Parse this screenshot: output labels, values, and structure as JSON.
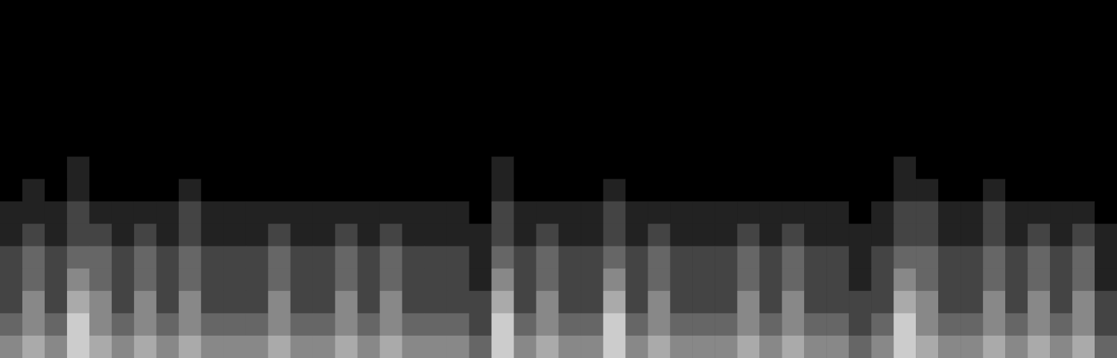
{
  "chart_data": {
    "type": "heatmap",
    "color": "#ffffff",
    "tick_labels": false,
    "cells": [
      [
        0,
        0,
        0,
        0,
        0,
        0,
        0,
        0,
        0,
        0,
        0,
        0,
        0,
        0,
        0,
        0,
        0,
        0,
        0,
        0,
        0,
        0,
        0,
        0,
        0,
        0,
        0,
        0,
        0,
        0,
        0,
        0,
        0,
        0,
        0,
        0,
        0,
        0,
        0,
        0,
        0,
        0,
        0,
        0,
        0,
        0,
        0,
        0,
        0,
        0
      ],
      [
        0,
        0,
        0,
        0,
        0,
        0,
        0,
        0,
        0,
        0,
        0,
        0,
        0,
        0,
        0,
        0,
        0,
        0,
        0,
        0,
        0,
        0,
        0,
        0,
        0,
        0,
        0,
        0,
        0,
        0,
        0,
        0,
        0,
        0,
        0,
        0,
        0,
        0,
        0,
        0,
        0,
        0,
        0,
        0,
        0,
        0,
        0,
        0,
        0,
        0
      ],
      [
        0,
        0,
        0,
        0,
        0,
        0,
        0,
        0,
        0,
        0,
        0,
        0,
        0,
        0,
        0,
        0,
        0,
        0,
        0,
        0,
        0,
        0,
        0,
        0,
        0,
        0,
        0,
        0,
        0,
        0,
        0,
        0,
        0,
        0,
        0,
        0,
        0,
        0,
        0,
        0,
        0,
        0,
        0,
        0,
        0,
        0,
        0,
        0,
        0,
        0
      ],
      [
        0,
        0,
        0,
        0,
        0,
        0,
        0,
        0,
        0,
        0,
        0,
        0,
        0,
        0,
        0,
        0,
        0,
        0,
        0,
        0,
        0,
        0,
        0,
        0,
        0,
        0,
        0,
        0,
        0,
        0,
        0,
        0,
        0,
        0,
        0,
        0,
        0,
        0,
        0,
        0,
        0,
        0,
        0,
        0,
        0,
        0,
        0,
        0,
        0,
        0
      ],
      [
        0,
        0,
        0,
        0,
        0,
        0,
        0,
        0,
        0,
        0,
        0,
        0,
        0,
        0,
        0,
        0,
        0,
        0,
        0,
        0,
        0,
        0,
        0,
        0,
        0,
        0,
        0,
        0,
        0,
        0,
        0,
        0,
        0,
        0,
        0,
        0,
        0,
        0,
        0,
        0,
        0,
        0,
        0,
        0,
        0,
        0,
        0,
        0,
        0,
        0
      ],
      [
        0,
        0,
        0,
        0,
        0,
        0,
        0,
        0,
        0,
        0,
        0,
        0,
        0,
        0,
        0,
        0,
        0,
        0,
        0,
        0,
        0,
        0,
        0,
        0,
        0,
        0,
        0,
        0,
        0,
        0,
        0,
        0,
        0,
        0,
        0,
        0,
        0,
        0,
        0,
        0,
        0,
        0,
        0,
        0,
        0,
        0,
        0,
        0,
        0,
        0
      ],
      [
        0,
        0,
        0,
        0,
        0,
        0,
        0,
        0,
        0,
        0,
        0,
        0,
        0,
        0,
        0,
        0,
        0,
        0,
        0,
        0,
        0,
        0,
        0,
        0,
        0,
        0,
        0,
        0,
        0,
        0,
        0,
        0,
        0,
        0,
        0,
        0,
        0,
        0,
        0,
        0,
        0,
        0,
        0,
        0,
        0,
        0,
        0,
        0,
        0,
        0
      ],
      [
        0,
        0,
        0,
        1,
        0,
        0,
        0,
        0,
        0,
        0,
        0,
        0,
        0,
        0,
        0,
        0,
        0,
        0,
        0,
        0,
        0,
        0,
        1,
        0,
        0,
        0,
        0,
        0,
        0,
        0,
        0,
        0,
        0,
        0,
        0,
        0,
        0,
        0,
        0,
        0,
        1,
        0,
        0,
        0,
        0,
        0,
        0,
        0,
        0,
        0
      ],
      [
        0,
        1,
        0,
        1,
        0,
        0,
        0,
        0,
        1,
        0,
        0,
        0,
        0,
        0,
        0,
        0,
        0,
        0,
        0,
        0,
        0,
        0,
        1,
        0,
        0,
        0,
        0,
        1,
        0,
        0,
        0,
        0,
        0,
        0,
        0,
        0,
        0,
        0,
        0,
        0,
        1,
        1,
        0,
        0,
        1,
        0,
        0,
        0,
        0,
        0
      ],
      [
        1,
        1,
        1,
        2,
        1,
        1,
        1,
        1,
        2,
        1,
        1,
        1,
        1,
        1,
        1,
        1,
        1,
        1,
        1,
        1,
        1,
        0,
        2,
        1,
        1,
        1,
        1,
        2,
        1,
        1,
        1,
        1,
        1,
        1,
        1,
        1,
        1,
        1,
        0,
        1,
        2,
        2,
        1,
        1,
        2,
        1,
        1,
        1,
        1,
        0
      ],
      [
        1,
        2,
        1,
        2,
        2,
        1,
        2,
        1,
        2,
        1,
        1,
        1,
        2,
        1,
        1,
        2,
        1,
        2,
        1,
        1,
        1,
        1,
        2,
        1,
        2,
        1,
        1,
        2,
        1,
        2,
        1,
        1,
        1,
        2,
        1,
        2,
        1,
        1,
        1,
        1,
        2,
        2,
        1,
        1,
        2,
        1,
        2,
        1,
        2,
        1
      ],
      [
        2,
        3,
        2,
        3,
        3,
        2,
        3,
        2,
        3,
        2,
        2,
        2,
        3,
        2,
        2,
        3,
        2,
        3,
        2,
        2,
        2,
        1,
        3,
        2,
        3,
        2,
        2,
        3,
        2,
        3,
        2,
        2,
        2,
        3,
        2,
        3,
        2,
        2,
        1,
        2,
        3,
        3,
        2,
        2,
        3,
        2,
        3,
        2,
        3,
        1
      ],
      [
        2,
        3,
        2,
        4,
        3,
        2,
        3,
        2,
        3,
        2,
        2,
        2,
        3,
        2,
        2,
        3,
        2,
        3,
        2,
        2,
        2,
        1,
        4,
        2,
        3,
        2,
        2,
        4,
        2,
        3,
        2,
        2,
        2,
        3,
        2,
        3,
        2,
        2,
        1,
        2,
        4,
        3,
        2,
        2,
        3,
        2,
        3,
        2,
        3,
        1
      ],
      [
        2,
        4,
        2,
        5,
        4,
        2,
        4,
        2,
        4,
        2,
        2,
        2,
        4,
        2,
        2,
        4,
        2,
        4,
        2,
        2,
        2,
        2,
        5,
        2,
        4,
        2,
        2,
        5,
        2,
        4,
        2,
        2,
        2,
        4,
        2,
        4,
        2,
        2,
        2,
        2,
        5,
        4,
        2,
        2,
        4,
        2,
        4,
        2,
        4,
        2
      ],
      [
        3,
        4,
        3,
        6,
        4,
        3,
        4,
        3,
        4,
        3,
        3,
        3,
        4,
        3,
        3,
        4,
        3,
        4,
        3,
        3,
        3,
        2,
        6,
        3,
        4,
        3,
        3,
        6,
        3,
        4,
        3,
        3,
        3,
        4,
        3,
        4,
        3,
        3,
        2,
        3,
        6,
        4,
        3,
        3,
        4,
        3,
        4,
        3,
        4,
        2
      ],
      [
        4,
        5,
        4,
        6,
        5,
        4,
        5,
        4,
        5,
        4,
        4,
        4,
        5,
        4,
        4,
        5,
        4,
        5,
        4,
        4,
        4,
        3,
        6,
        4,
        5,
        4,
        4,
        6,
        4,
        5,
        4,
        4,
        4,
        5,
        4,
        5,
        4,
        4,
        3,
        4,
        6,
        5,
        4,
        4,
        5,
        4,
        5,
        4,
        5,
        3
      ]
    ]
  }
}
